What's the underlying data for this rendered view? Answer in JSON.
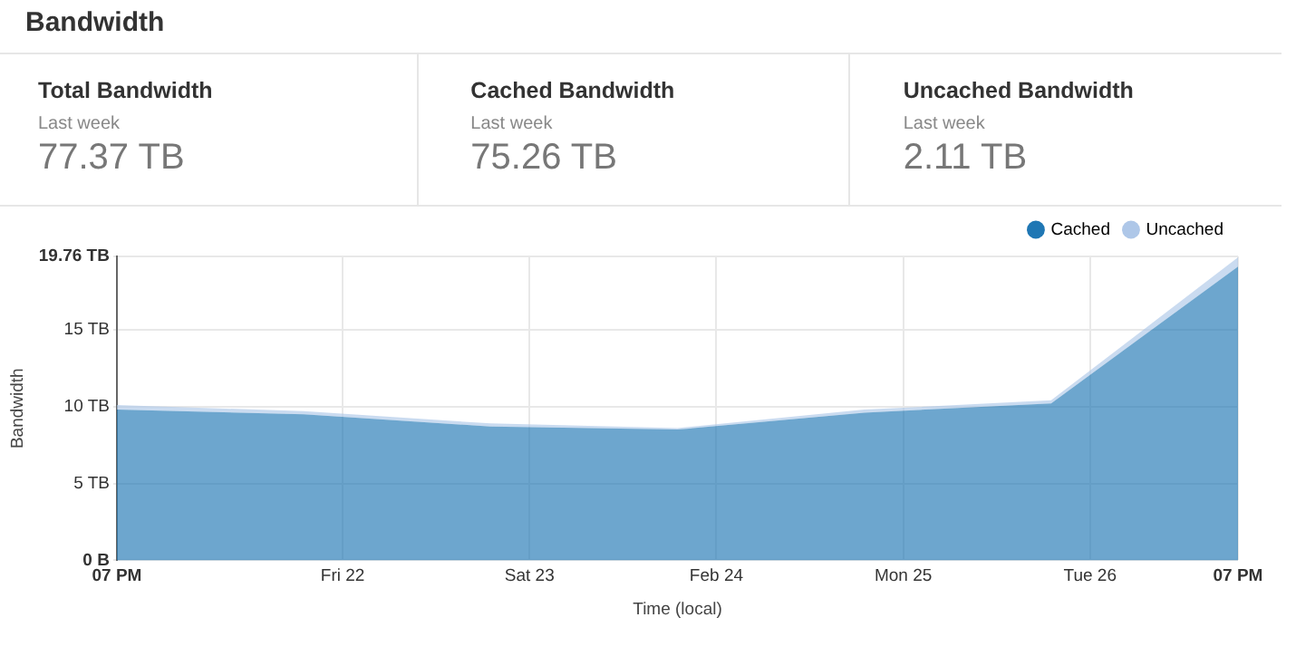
{
  "chart_data": [
    {
      "type": "other",
      "title": "Bandwidth"
    },
    {
      "type": "other",
      "title": "Total Bandwidth",
      "subtitle": "Last week",
      "annotations": [
        "77.37 TB"
      ]
    },
    {
      "type": "other",
      "title": "Cached Bandwidth",
      "subtitle": "Last week",
      "annotations": [
        "75.26 TB"
      ]
    },
    {
      "type": "other",
      "title": "Uncached Bandwidth",
      "subtitle": "Last week",
      "annotations": [
        "2.11 TB"
      ]
    },
    {
      "type": "area",
      "xlabel": "Time (local)",
      "ylabel": "Bandwidth",
      "stacked": true,
      "grid": true,
      "legend": "top right",
      "x": [
        "--02-20T19:00",
        "--02-21T19:00",
        "--02-22T19:00",
        "--02-23T19:00",
        "--02-24T19:00",
        "--02-25T19:00",
        "--02-26T19:00"
      ],
      "xlim": [
        "--02-20T19:00",
        "--02-26T19:00"
      ],
      "xticks": [
        {
          "value": "--02-20T19:00",
          "label": "07 PM"
        },
        {
          "value": "--02-22",
          "label": "Fri 22"
        },
        {
          "value": "--02-23",
          "label": "Sat 23"
        },
        {
          "value": "--02-24",
          "label": "Feb 24"
        },
        {
          "value": "--02-25",
          "label": "Mon 25"
        },
        {
          "value": "--02-26",
          "label": "Tue 26"
        },
        {
          "value": "--02-26T19:00",
          "label": "07 PM"
        }
      ],
      "ylim": [
        0,
        19.76
      ],
      "yticks": [
        {
          "value": 0,
          "label": "0 B"
        },
        {
          "value": 5,
          "label": "5 TB"
        },
        {
          "value": 10,
          "label": "10 TB"
        },
        {
          "value": 15,
          "label": "15 TB"
        },
        {
          "value": 19.76,
          "label": "19.76 TB"
        }
      ],
      "series": [
        {
          "name": "Cached",
          "color": "#1f77b4",
          "values": [
            9.8,
            9.5,
            8.7,
            8.5,
            9.6,
            10.2,
            19.1
          ]
        },
        {
          "name": "Uncached",
          "color": "#aec7e8",
          "values": [
            0.3,
            0.2,
            0.2,
            0.1,
            0.2,
            0.2,
            0.6
          ]
        }
      ]
    }
  ]
}
